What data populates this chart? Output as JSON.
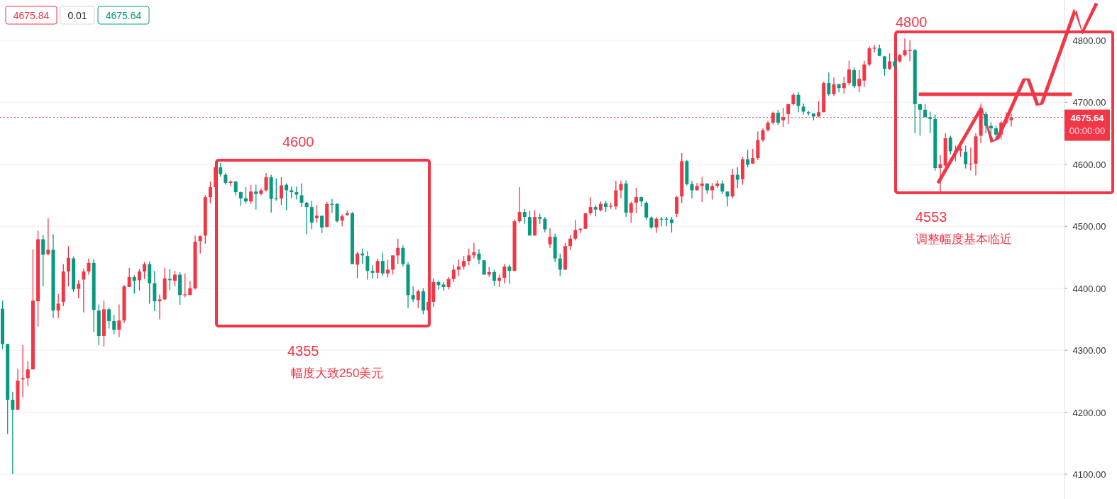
{
  "chart_data": {
    "type": "candlestick",
    "categories": [
      null,
      null,
      null,
      null,
      null,
      null,
      null,
      null,
      null,
      null,
      null,
      null,
      null,
      null,
      null,
      null,
      null,
      null,
      null,
      null,
      null,
      null,
      null,
      null,
      null,
      null,
      null,
      null,
      null,
      null,
      null,
      null,
      null,
      null,
      null,
      null,
      null,
      null,
      null,
      null,
      null,
      null,
      null,
      null,
      null,
      null,
      null,
      null,
      null,
      null,
      null,
      null,
      null,
      null,
      null,
      null,
      null,
      null,
      null,
      null,
      null,
      null,
      null,
      null,
      null,
      null,
      null,
      null,
      null,
      null,
      null,
      null,
      null,
      null,
      null,
      null,
      null,
      null,
      null,
      null,
      null,
      null,
      null,
      null,
      null,
      null,
      null,
      null,
      null,
      null,
      null,
      null,
      null,
      null,
      null,
      null,
      null,
      null,
      null,
      null,
      null,
      null,
      null,
      null,
      null,
      null,
      null,
      null,
      null,
      null,
      null,
      null,
      null,
      null,
      null,
      null,
      null,
      null,
      null,
      null,
      null,
      null,
      null,
      null,
      null,
      null,
      null,
      null,
      null,
      null,
      null,
      null,
      null,
      null,
      null,
      null,
      null,
      null,
      null,
      null,
      null,
      null,
      null,
      null,
      null,
      null,
      null,
      null,
      null,
      null,
      null,
      null,
      null,
      null,
      null,
      null,
      null,
      null,
      null,
      null,
      null,
      null,
      null,
      null,
      null,
      null,
      null,
      null,
      null,
      null,
      null,
      null,
      null,
      null,
      null,
      null,
      null,
      null,
      null,
      null,
      null,
      null,
      null,
      null,
      null,
      null,
      null,
      null,
      null,
      null,
      null,
      null,
      null,
      null,
      null,
      null,
      null,
      null,
      null,
      null,
      null,
      null,
      null,
      null,
      null,
      null,
      null,
      null,
      null,
      null
    ],
    "ohlc": [
      [
        4367,
        4380,
        4302,
        4310
      ],
      [
        4310,
        4310,
        4165,
        4220
      ],
      [
        4220,
        4233,
        4100,
        4204
      ],
      [
        4204,
        4270,
        4204,
        4251
      ],
      [
        4253,
        4308,
        4224,
        4255
      ],
      [
        4255,
        4282,
        4242,
        4269
      ],
      [
        4269,
        4463,
        4269,
        4380
      ],
      [
        4379,
        4493,
        4338,
        4479
      ],
      [
        4479,
        4486,
        4403,
        4454
      ],
      [
        4455,
        4513,
        4453,
        4462
      ],
      [
        4462,
        4487,
        4352,
        4364
      ],
      [
        4364,
        4391,
        4352,
        4375
      ],
      [
        4378,
        4439,
        4371,
        4427
      ],
      [
        4427,
        4468,
        4403,
        4449
      ],
      [
        4448,
        4451,
        4394,
        4398
      ],
      [
        4399,
        4413,
        4384,
        4407
      ],
      [
        4414,
        4431,
        4361,
        4427
      ],
      [
        4427,
        4448,
        4422,
        4441
      ],
      [
        4441,
        4447,
        4330,
        4365
      ],
      [
        4364,
        4374,
        4308,
        4323
      ],
      [
        4323,
        4380,
        4306,
        4366
      ],
      [
        4366,
        4369,
        4335,
        4347
      ],
      [
        4347,
        4357,
        4326,
        4333
      ],
      [
        4333,
        4374,
        4321,
        4348
      ],
      [
        4348,
        4405,
        4344,
        4403
      ],
      [
        4402,
        4433,
        4402,
        4418
      ],
      [
        4418,
        4421,
        4391,
        4412
      ],
      [
        4413,
        4431,
        4396,
        4427
      ],
      [
        4427,
        4442,
        4415,
        4439
      ],
      [
        4439,
        4443,
        4375,
        4408
      ],
      [
        4408,
        4428,
        4363,
        4379
      ],
      [
        4379,
        4390,
        4350,
        4382
      ],
      [
        4382,
        4433,
        4381,
        4416
      ],
      [
        4415,
        4431,
        4397,
        4413
      ],
      [
        4412,
        4428,
        4403,
        4422
      ],
      [
        4422,
        4426,
        4373,
        4389
      ],
      [
        4389,
        4424,
        4385,
        4390
      ],
      [
        4389,
        4412,
        4389,
        4400
      ],
      [
        4400,
        4485,
        4398,
        4475
      ],
      [
        4476,
        4485,
        4456,
        4484
      ],
      [
        4485,
        4550,
        4472,
        4547
      ],
      [
        4547,
        4572,
        4537,
        4563
      ],
      [
        4563,
        4600,
        4553,
        4595
      ],
      [
        4595,
        4602,
        4580,
        4584
      ],
      [
        4583,
        4586,
        4567,
        4570
      ],
      [
        4570,
        4574,
        4565,
        4572
      ],
      [
        4572,
        4573,
        4550,
        4555
      ],
      [
        4555,
        4556,
        4533,
        4545
      ],
      [
        4545,
        4563,
        4537,
        4540
      ],
      [
        4540,
        4567,
        4536,
        4556
      ],
      [
        4556,
        4567,
        4527,
        4552
      ],
      [
        4552,
        4561,
        4550,
        4558
      ],
      [
        4558,
        4586,
        4556,
        4579
      ],
      [
        4579,
        4583,
        4522,
        4544
      ],
      [
        4545,
        4577,
        4541,
        4544
      ],
      [
        4545,
        4579,
        4534,
        4566
      ],
      [
        4567,
        4569,
        4526,
        4558
      ],
      [
        4558,
        4564,
        4545,
        4555
      ],
      [
        4555,
        4564,
        4543,
        4551
      ],
      [
        4550,
        4569,
        4531,
        4538
      ],
      [
        4538,
        4539,
        4487,
        4531
      ],
      [
        4531,
        4541,
        4495,
        4506
      ],
      [
        4513,
        4534,
        4506,
        4517
      ],
      [
        4517,
        4517,
        4489,
        4498
      ],
      [
        4499,
        4539,
        4498,
        4536
      ],
      [
        4536,
        4544,
        4522,
        4535
      ],
      [
        4536,
        4537,
        4506,
        4508
      ],
      [
        4509,
        4519,
        4500,
        4516
      ],
      [
        4518,
        4525,
        4517,
        4521
      ],
      [
        4521,
        4523,
        4439,
        4439
      ],
      [
        4438,
        4459,
        4416,
        4456
      ],
      [
        4456,
        4464,
        4439,
        4453
      ],
      [
        4452,
        4460,
        4414,
        4428
      ],
      [
        4428,
        4437,
        4416,
        4425
      ],
      [
        4425,
        4448,
        4416,
        4444
      ],
      [
        4444,
        4457,
        4420,
        4424
      ],
      [
        4424,
        4446,
        4417,
        4430
      ],
      [
        4430,
        4453,
        4422,
        4453
      ],
      [
        4453,
        4480,
        4439,
        4465
      ],
      [
        4465,
        4469,
        4435,
        4439
      ],
      [
        4438,
        4442,
        4368,
        4389
      ],
      [
        4389,
        4403,
        4378,
        4382
      ],
      [
        4381,
        4398,
        4368,
        4395
      ],
      [
        4395,
        4400,
        4358,
        4364
      ],
      [
        4364,
        4421,
        4355,
        4378
      ],
      [
        4378,
        4416,
        4370,
        4410
      ],
      [
        4410,
        4412,
        4398,
        4405
      ],
      [
        4406,
        4410,
        4396,
        4402
      ],
      [
        4402,
        4418,
        4398,
        4415
      ],
      [
        4415,
        4438,
        4410,
        4430
      ],
      [
        4430,
        4446,
        4420,
        4435
      ],
      [
        4435,
        4452,
        4430,
        4444
      ],
      [
        4444,
        4464,
        4437,
        4453
      ],
      [
        4453,
        4473,
        4448,
        4458
      ],
      [
        4456,
        4463,
        4439,
        4446
      ],
      [
        4445,
        4445,
        4422,
        4422
      ],
      [
        4422,
        4434,
        4418,
        4426
      ],
      [
        4426,
        4430,
        4404,
        4412
      ],
      [
        4412,
        4422,
        4402,
        4417
      ],
      [
        4417,
        4439,
        4408,
        4435
      ],
      [
        4435,
        4438,
        4407,
        4428
      ],
      [
        4428,
        4511,
        4428,
        4508
      ],
      [
        4508,
        4563,
        4505,
        4523
      ],
      [
        4523,
        4528,
        4504,
        4515
      ],
      [
        4515,
        4525,
        4485,
        4485
      ],
      [
        4485,
        4526,
        4485,
        4515
      ],
      [
        4515,
        4520,
        4504,
        4512
      ],
      [
        4512,
        4515,
        4490,
        4495
      ],
      [
        4471,
        4497,
        4465,
        4483
      ],
      [
        4483,
        4488,
        4442,
        4448
      ],
      [
        4448,
        4456,
        4420,
        4430
      ],
      [
        4430,
        4473,
        4430,
        4468
      ],
      [
        4468,
        4486,
        4462,
        4480
      ],
      [
        4480,
        4510,
        4477,
        4494
      ],
      [
        4494,
        4497,
        4489,
        4496
      ],
      [
        4496,
        4521,
        4496,
        4521
      ],
      [
        4521,
        4547,
        4518,
        4531
      ],
      [
        4531,
        4534,
        4516,
        4527
      ],
      [
        4526,
        4540,
        4524,
        4536
      ],
      [
        4537,
        4541,
        4523,
        4531
      ],
      [
        4532,
        4538,
        4528,
        4533
      ],
      [
        4532,
        4573,
        4527,
        4558
      ],
      [
        4558,
        4574,
        4545,
        4568
      ],
      [
        4569,
        4574,
        4515,
        4522
      ],
      [
        4522,
        4540,
        4506,
        4537
      ],
      [
        4538,
        4562,
        4521,
        4547
      ],
      [
        4547,
        4548,
        4532,
        4540
      ],
      [
        4538,
        4540,
        4510,
        4514
      ],
      [
        4514,
        4516,
        4496,
        4498
      ],
      [
        4498,
        4515,
        4489,
        4512
      ],
      [
        4512,
        4515,
        4500,
        4511
      ],
      [
        4512,
        4515,
        4500,
        4511
      ],
      [
        4511,
        4515,
        4490,
        4505
      ],
      [
        4520,
        4549,
        4515,
        4547
      ],
      [
        4548,
        4618,
        4537,
        4605
      ],
      [
        4605,
        4607,
        4566,
        4568
      ],
      [
        4568,
        4573,
        4545,
        4558
      ],
      [
        4558,
        4570,
        4558,
        4565
      ],
      [
        4565,
        4580,
        4539,
        4569
      ],
      [
        4569,
        4569,
        4552,
        4558
      ],
      [
        4558,
        4570,
        4543,
        4565
      ],
      [
        4565,
        4574,
        4562,
        4569
      ],
      [
        4569,
        4574,
        4552,
        4556
      ],
      [
        4556,
        4556,
        4532,
        4548
      ],
      [
        4548,
        4593,
        4545,
        4583
      ],
      [
        4583,
        4595,
        4562,
        4575
      ],
      [
        4576,
        4612,
        4567,
        4608
      ],
      [
        4608,
        4623,
        4595,
        4599
      ],
      [
        4601,
        4625,
        4601,
        4610
      ],
      [
        4610,
        4653,
        4607,
        4639
      ],
      [
        4639,
        4658,
        4636,
        4655
      ],
      [
        4655,
        4670,
        4653,
        4667
      ],
      [
        4667,
        4685,
        4664,
        4683
      ],
      [
        4683,
        4688,
        4663,
        4667
      ],
      [
        4671,
        4691,
        4660,
        4676
      ],
      [
        4681,
        4697,
        4665,
        4697
      ],
      [
        4697,
        4715,
        4695,
        4712
      ],
      [
        4712,
        4716,
        4684,
        4694
      ],
      [
        4693,
        4698,
        4680,
        4685
      ],
      [
        4684,
        4686,
        4679,
        4682
      ],
      [
        4682,
        4682,
        4671,
        4677
      ],
      [
        4677,
        4702,
        4676,
        4684
      ],
      [
        4684,
        4733,
        4684,
        4731
      ],
      [
        4731,
        4748,
        4710,
        4713
      ],
      [
        4713,
        4740,
        4710,
        4729
      ],
      [
        4729,
        4730,
        4716,
        4723
      ],
      [
        4723,
        4741,
        4714,
        4731
      ],
      [
        4731,
        4767,
        4727,
        4753
      ],
      [
        4752,
        4756,
        4723,
        4726
      ],
      [
        4726,
        4752,
        4716,
        4738
      ],
      [
        4735,
        4767,
        4725,
        4761
      ],
      [
        4761,
        4790,
        4758,
        4787
      ],
      [
        4787,
        4792,
        4780,
        4788
      ],
      [
        4787,
        4793,
        4775,
        4775
      ],
      [
        4774,
        4775,
        4743,
        4754
      ],
      [
        4754,
        4779,
        4752,
        4766
      ],
      [
        4766,
        4770,
        4755,
        4758
      ],
      [
        4766,
        4778,
        4764,
        4776
      ],
      [
        4776,
        4803,
        4774,
        4784
      ],
      [
        4783,
        4800,
        4766,
        4784
      ],
      [
        4784,
        4786,
        4650,
        4697
      ],
      [
        4697,
        4697,
        4646,
        4688
      ],
      [
        4688,
        4697,
        4676,
        4676
      ],
      [
        4676,
        4685,
        4650,
        4673
      ],
      [
        4673,
        4680,
        4590,
        4594
      ],
      [
        4594,
        4615,
        4553,
        4600
      ],
      [
        4598,
        4650,
        4596,
        4642
      ],
      [
        4643,
        4646,
        4616,
        4621
      ],
      [
        4621,
        4630,
        4605,
        4622
      ],
      [
        4622,
        4632,
        4612,
        4625
      ],
      [
        4620,
        4630,
        4593,
        4600
      ],
      [
        4600,
        4627,
        4590,
        4601
      ],
      [
        4601,
        4650,
        4582,
        4645
      ],
      [
        4646,
        4698,
        4634,
        4691
      ],
      [
        4681,
        4685,
        4650,
        4662
      ],
      [
        4662,
        4668,
        4645,
        4658
      ],
      [
        4658,
        4662,
        4642,
        4648
      ],
      [
        4648,
        4670,
        4640,
        4667
      ],
      [
        4667,
        4684,
        4665,
        4671
      ],
      [
        4671,
        4681,
        4661,
        4675.64
      ],
      null,
      null,
      null,
      null,
      null,
      null,
      null,
      null,
      null,
      null
    ],
    "ylim": [
      4060,
      4865
    ],
    "yticks": [
      {
        "value": 4100,
        "label": "4100.00"
      },
      {
        "value": 4200,
        "label": "4200.00"
      },
      {
        "value": 4300,
        "label": "4300.00"
      },
      {
        "value": 4400,
        "label": "4400.00"
      },
      {
        "value": 4500,
        "label": "4500.00"
      },
      {
        "value": 4600,
        "label": "4600.00"
      },
      {
        "value": 4700,
        "label": "4700.00"
      },
      {
        "value": 4800,
        "label": "4800.00"
      }
    ],
    "grid": "y",
    "ref_lines": [
      {
        "axis": "y",
        "value": 4675.64,
        "label": "4675.64",
        "color": "#f23645",
        "line_style": "dotted"
      }
    ],
    "annotations": [
      "4675.84",
      "0.01",
      "4675.64",
      "00:00:00",
      "4600",
      "4355",
      "幅度大致250美元",
      "4800",
      "4553",
      "调整幅度基本临近"
    ]
  }
}
